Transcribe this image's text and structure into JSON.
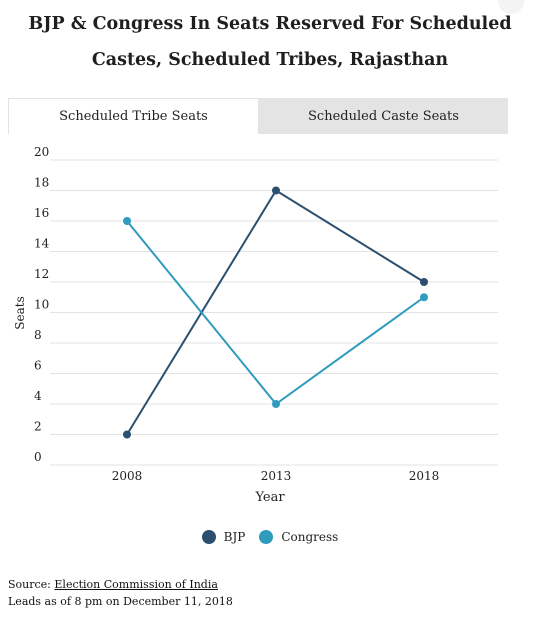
{
  "title": "BJP & Congress In Seats Reserved For Scheduled Castes, Scheduled Tribes, Rajasthan",
  "tabs": [
    {
      "label": "Scheduled Tribe Seats",
      "active": true
    },
    {
      "label": "Scheduled Caste Seats",
      "active": false
    }
  ],
  "colors": {
    "bjp": "#2b4f6e",
    "congress": "#2f9bbd",
    "grid": "#e3e3e3"
  },
  "chart_data": {
    "type": "line",
    "categories": [
      "2008",
      "2013",
      "2018"
    ],
    "series": [
      {
        "name": "BJP",
        "values": [
          2,
          18,
          12
        ]
      },
      {
        "name": "Congress",
        "values": [
          16,
          4,
          11
        ]
      }
    ],
    "xlabel": "Year",
    "ylabel": "Seats",
    "ylim": [
      0,
      20
    ],
    "yticks": [
      "0",
      "2",
      "4",
      "6",
      "8",
      "10",
      "12",
      "14",
      "16",
      "18",
      "20"
    ],
    "grid": true,
    "legend": "bottom-center"
  },
  "footer": {
    "source_label": "Source:",
    "source_link": "Election Commission of India",
    "note": "Leads as of 8 pm on December 11, 2018"
  }
}
